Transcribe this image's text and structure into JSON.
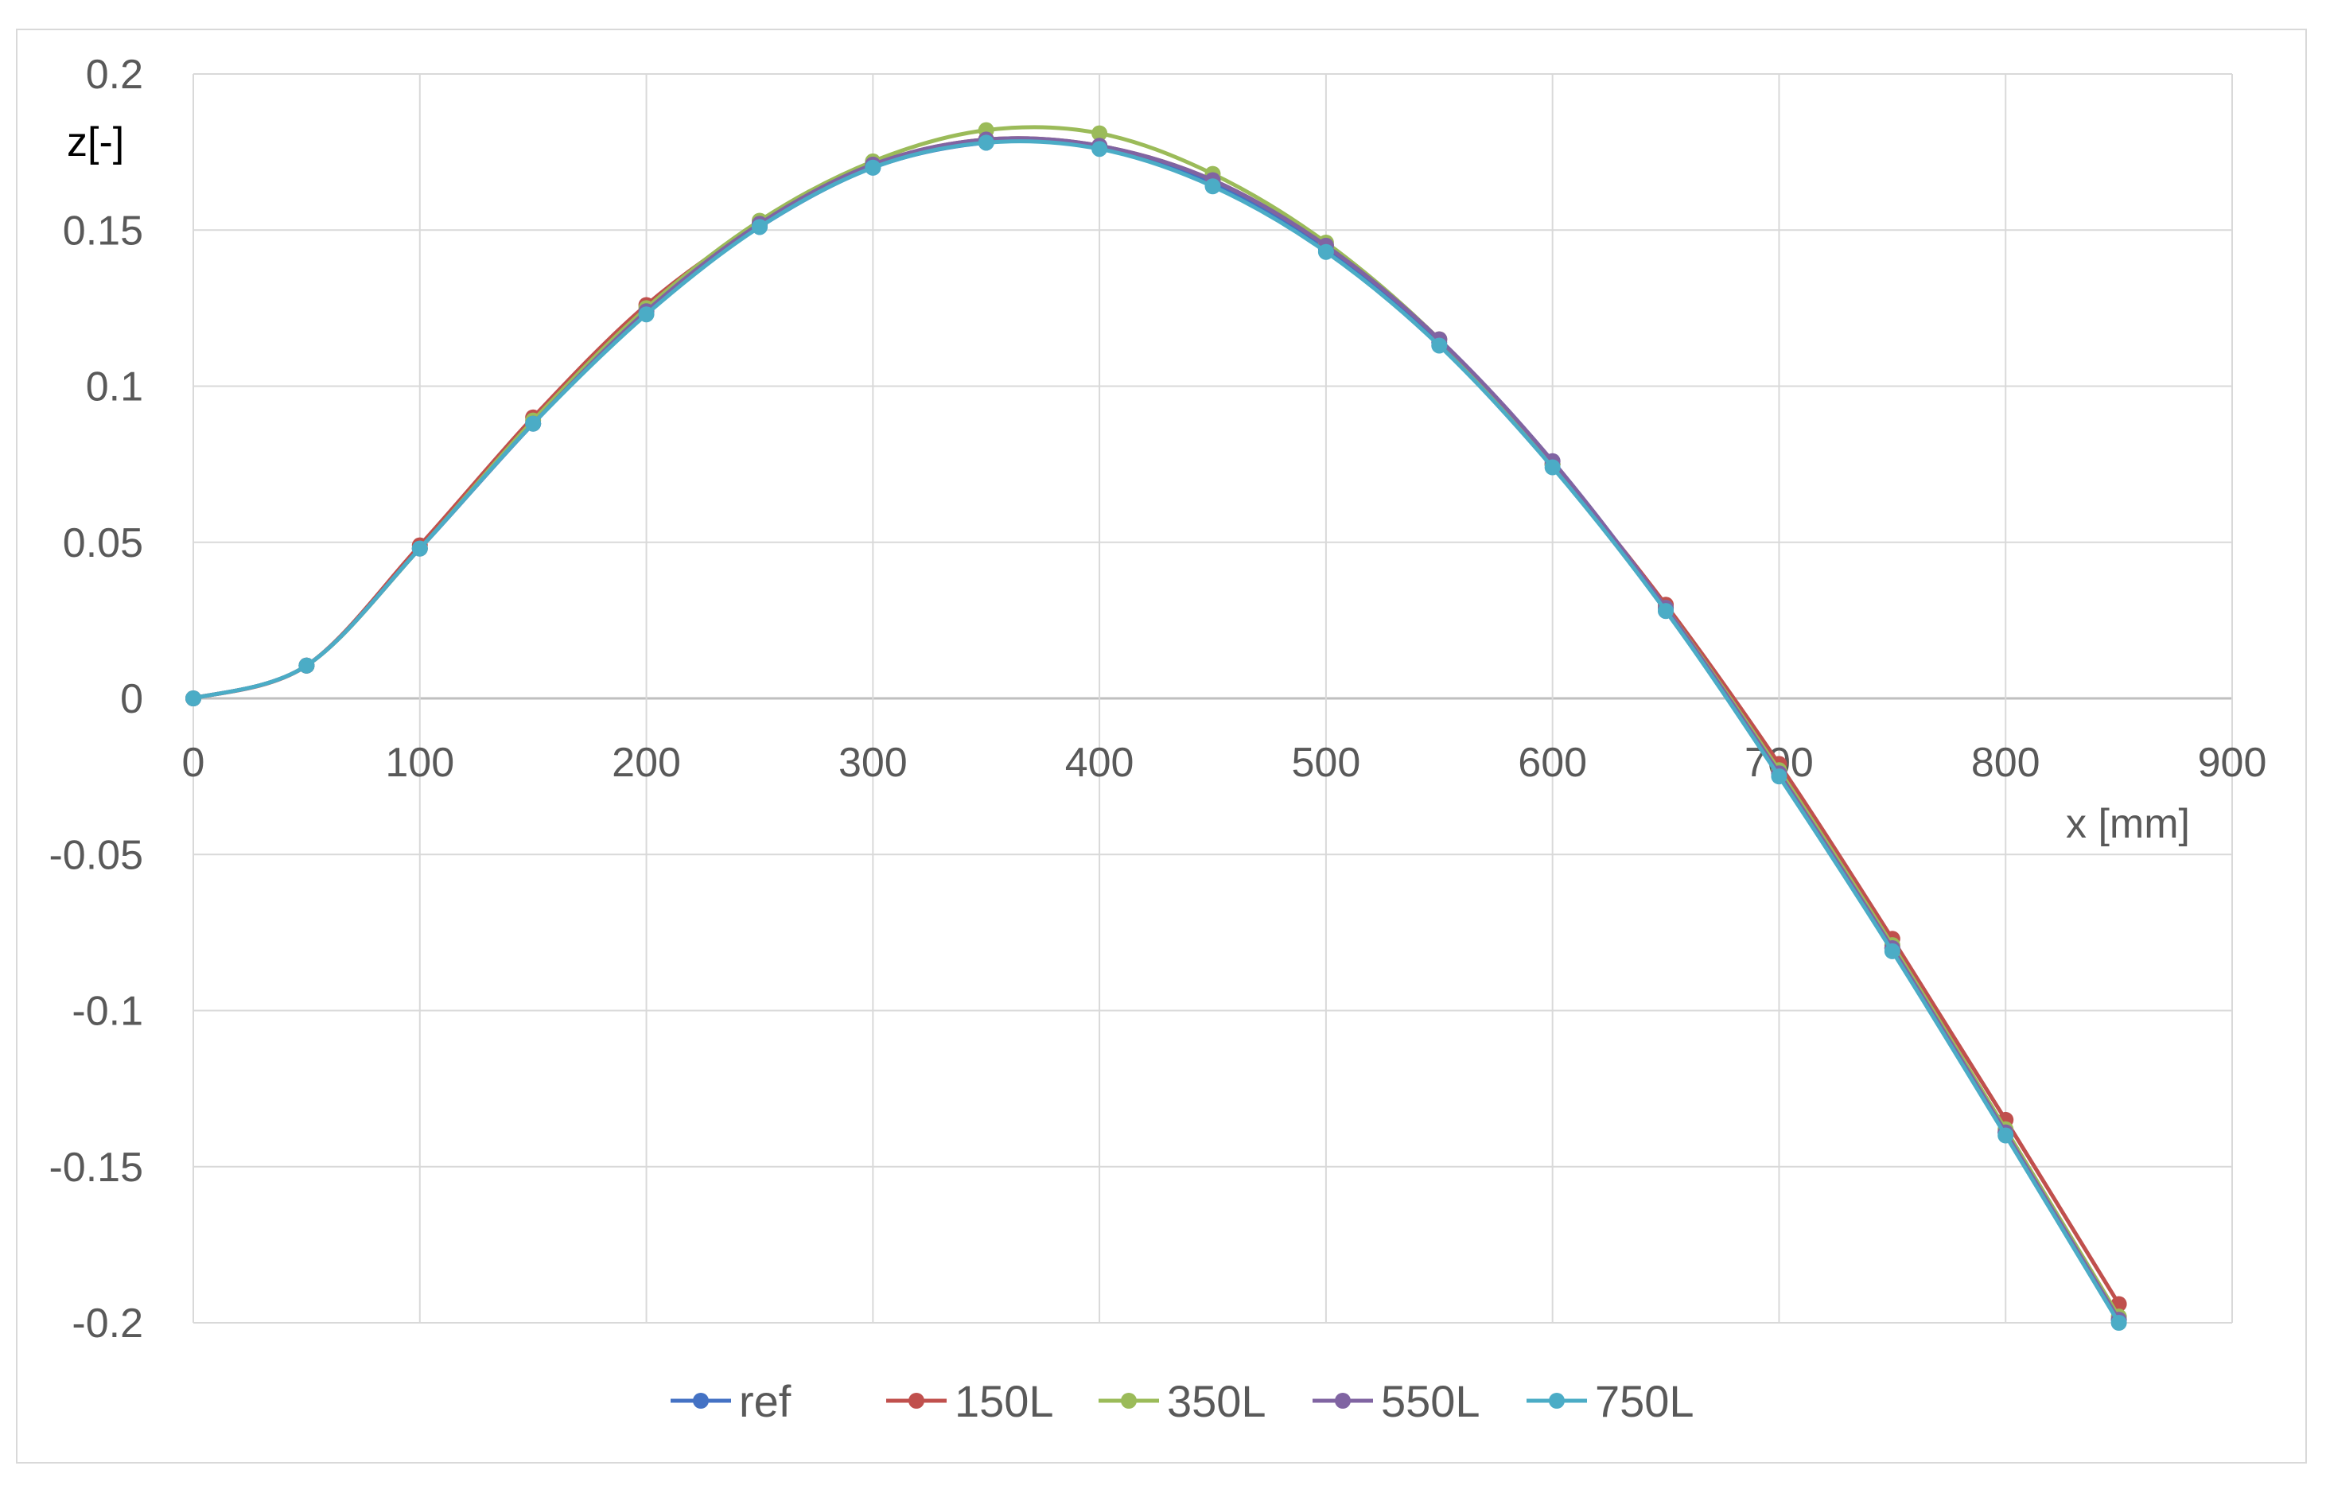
{
  "chart_data": {
    "type": "line",
    "title": "",
    "xlabel": "x [mm]",
    "ylabel": "z[-]",
    "xlim": [
      0,
      900
    ],
    "ylim": [
      -0.2,
      0.2
    ],
    "x_ticks": [
      0,
      100,
      200,
      300,
      400,
      500,
      600,
      700,
      800,
      900
    ],
    "y_ticks": [
      0.2,
      0.15,
      0.1,
      0.05,
      0,
      -0.05,
      -0.1,
      -0.15,
      -0.2
    ],
    "x_tick_labels": [
      "0",
      "100",
      "200",
      "300",
      "400",
      "500",
      "600",
      "700",
      "800",
      "900"
    ],
    "y_tick_labels": [
      "0.2",
      "0.15",
      "0.1",
      "0.05",
      "0",
      "-0.05",
      "-0.1",
      "-0.15",
      "-0.2"
    ],
    "grid": true,
    "legend_position": "bottom",
    "x": [
      0,
      50,
      100,
      150,
      200,
      250,
      300,
      350,
      400,
      450,
      500,
      550,
      600,
      650,
      700,
      750,
      800,
      850
    ],
    "series": [
      {
        "name": "ref",
        "color": "#4472c4",
        "values": [
          0,
          0.0105,
          0.048,
          0.088,
          0.124,
          0.151,
          0.17,
          0.178,
          0.177,
          0.165,
          0.144,
          0.114,
          0.075,
          0.028,
          -0.024,
          -0.08,
          -0.139,
          -0.199
        ]
      },
      {
        "name": "150L",
        "color": "#c0504d",
        "values": [
          0,
          0.0105,
          0.049,
          0.09,
          0.126,
          0.152,
          0.171,
          0.179,
          0.177,
          0.166,
          0.145,
          0.115,
          0.075,
          0.03,
          -0.021,
          -0.077,
          -0.135,
          -0.194
        ]
      },
      {
        "name": "350L",
        "color": "#9bbb59",
        "values": [
          0,
          0.0105,
          0.048,
          0.089,
          0.125,
          0.153,
          0.172,
          0.182,
          0.181,
          0.168,
          0.146,
          0.115,
          0.075,
          0.029,
          -0.023,
          -0.079,
          -0.138,
          -0.198
        ]
      },
      {
        "name": "550L",
        "color": "#8064a2",
        "values": [
          0,
          0.0105,
          0.048,
          0.088,
          0.124,
          0.152,
          0.171,
          0.179,
          0.177,
          0.166,
          0.145,
          0.115,
          0.076,
          0.029,
          -0.024,
          -0.08,
          -0.139,
          -0.199
        ]
      },
      {
        "name": "750L",
        "color": "#4bacc6",
        "values": [
          0,
          0.0105,
          0.048,
          0.088,
          0.123,
          0.151,
          0.17,
          0.178,
          0.176,
          0.164,
          0.143,
          0.113,
          0.074,
          0.028,
          -0.025,
          -0.081,
          -0.14,
          -0.2
        ]
      }
    ]
  }
}
